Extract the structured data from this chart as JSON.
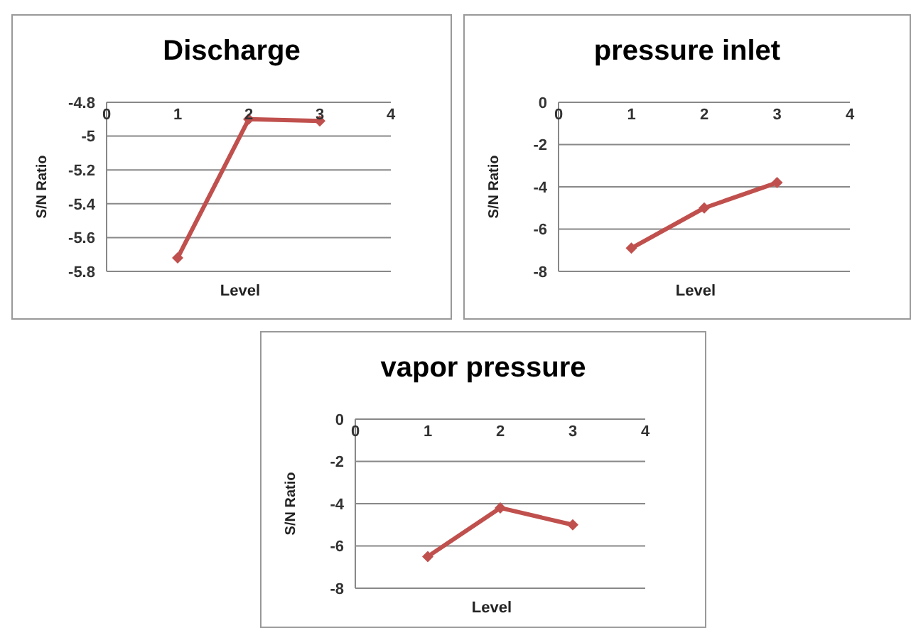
{
  "chart_data": [
    {
      "type": "line",
      "title": "Discharge",
      "xlabel": "Level",
      "ylabel": "S/N Ratio",
      "x": [
        1,
        2,
        3
      ],
      "series": [
        {
          "color": "#c0504d",
          "values": [
            -5.72,
            -4.9,
            -4.91
          ]
        }
      ],
      "xlim": [
        0,
        4
      ],
      "xticks": [
        0,
        1,
        2,
        3,
        4
      ],
      "ylim": [
        -5.8,
        -4.8
      ],
      "yticks": [
        -5.8,
        -5.6,
        -5.4,
        -5.2,
        -5,
        -4.8
      ],
      "grid": "y",
      "marker": "diamond",
      "line_style": "solid"
    },
    {
      "type": "line",
      "title": "pressure inlet",
      "xlabel": "Level",
      "ylabel": "S/N Ratio",
      "x": [
        1,
        2,
        3
      ],
      "series": [
        {
          "color": "#c0504d",
          "values": [
            -6.9,
            -5,
            -3.8
          ]
        }
      ],
      "xlim": [
        0,
        4
      ],
      "xticks": [
        0,
        1,
        2,
        3,
        4
      ],
      "ylim": [
        -8,
        0
      ],
      "yticks": [
        -8,
        -6,
        -4,
        -2,
        0
      ],
      "grid": "y",
      "marker": "diamond",
      "line_style": "solid"
    },
    {
      "type": "line",
      "title": "vapor pressure",
      "xlabel": "Level",
      "ylabel": "S/N Ratio",
      "x": [
        1,
        2,
        3
      ],
      "series": [
        {
          "color": "#c0504d",
          "values": [
            -6.5,
            -4.2,
            -5
          ]
        }
      ],
      "xlim": [
        0,
        4
      ],
      "xticks": [
        0,
        1,
        2,
        3,
        4
      ],
      "ylim": [
        -8,
        0
      ],
      "yticks": [
        -8,
        -6,
        -4,
        -2,
        0
      ],
      "grid": "y",
      "marker": "diamond",
      "line_style": "solid"
    }
  ]
}
